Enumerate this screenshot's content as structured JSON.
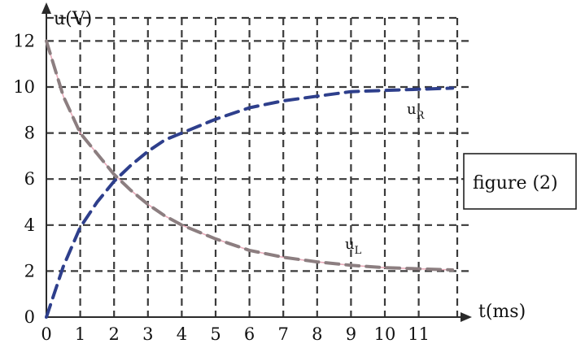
{
  "chart_data": {
    "type": "line",
    "title": "",
    "xlabel": "t(ms)",
    "ylabel": "u(V)",
    "xlim": [
      0,
      12
    ],
    "ylim": [
      0,
      12
    ],
    "x_ticks": [
      0,
      1,
      2,
      3,
      4,
      5,
      6,
      7,
      8,
      9,
      10,
      11
    ],
    "y_ticks": [
      0,
      2,
      4,
      6,
      8,
      10,
      12
    ],
    "grid": true,
    "annotation": "figure (2)",
    "colors": {
      "grid": "#3a3a3a",
      "axis": "#2a2a2a",
      "u_R": "#2e3f8c",
      "u_L": "#8c7e80",
      "u_L_overlay": "#e8a3b4"
    },
    "series": [
      {
        "name": "u_R",
        "label_main": "u",
        "label_sub": "R",
        "style": "dashed",
        "x": [
          0,
          0.5,
          1,
          1.5,
          2,
          2.5,
          3,
          3.5,
          4,
          5,
          6,
          7,
          8,
          9,
          10,
          11,
          12
        ],
        "y": [
          0,
          2.2,
          3.9,
          5.0,
          5.9,
          6.6,
          7.2,
          7.7,
          8.0,
          8.6,
          9.1,
          9.4,
          9.6,
          9.8,
          9.85,
          9.9,
          9.95
        ]
      },
      {
        "name": "u_L",
        "label_main": "u",
        "label_sub": "L",
        "style": "dashed",
        "x": [
          0,
          0.5,
          1,
          1.5,
          2,
          2.5,
          3,
          3.5,
          4,
          5,
          6,
          7,
          8,
          9,
          10,
          11,
          12
        ],
        "y": [
          12,
          9.6,
          8.0,
          7.1,
          6.2,
          5.5,
          4.9,
          4.4,
          4.0,
          3.4,
          2.9,
          2.6,
          2.4,
          2.25,
          2.15,
          2.1,
          2.05
        ]
      }
    ]
  }
}
